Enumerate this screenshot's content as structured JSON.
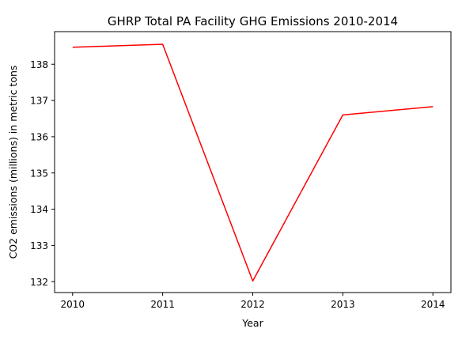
{
  "chart_data": {
    "type": "line",
    "title": "GHRP Total PA Facility GHG Emissions 2010-2014",
    "xlabel": "Year",
    "ylabel": "CO2 emissions (millions) in metric tons",
    "x": [
      2010,
      2011,
      2012,
      2013,
      2014
    ],
    "series": [
      {
        "values": [
          138.47,
          138.55,
          132.02,
          136.6,
          136.83
        ],
        "color": "#ff0000"
      }
    ],
    "xlim": [
      2009.8,
      2014.2
    ],
    "ylim": [
      131.7,
      138.9
    ],
    "xticks": [
      "2010",
      "2011",
      "2012",
      "2013",
      "2014"
    ],
    "yticks": [
      "132",
      "133",
      "134",
      "135",
      "136",
      "137",
      "138"
    ],
    "grid": false,
    "legend": "none"
  }
}
